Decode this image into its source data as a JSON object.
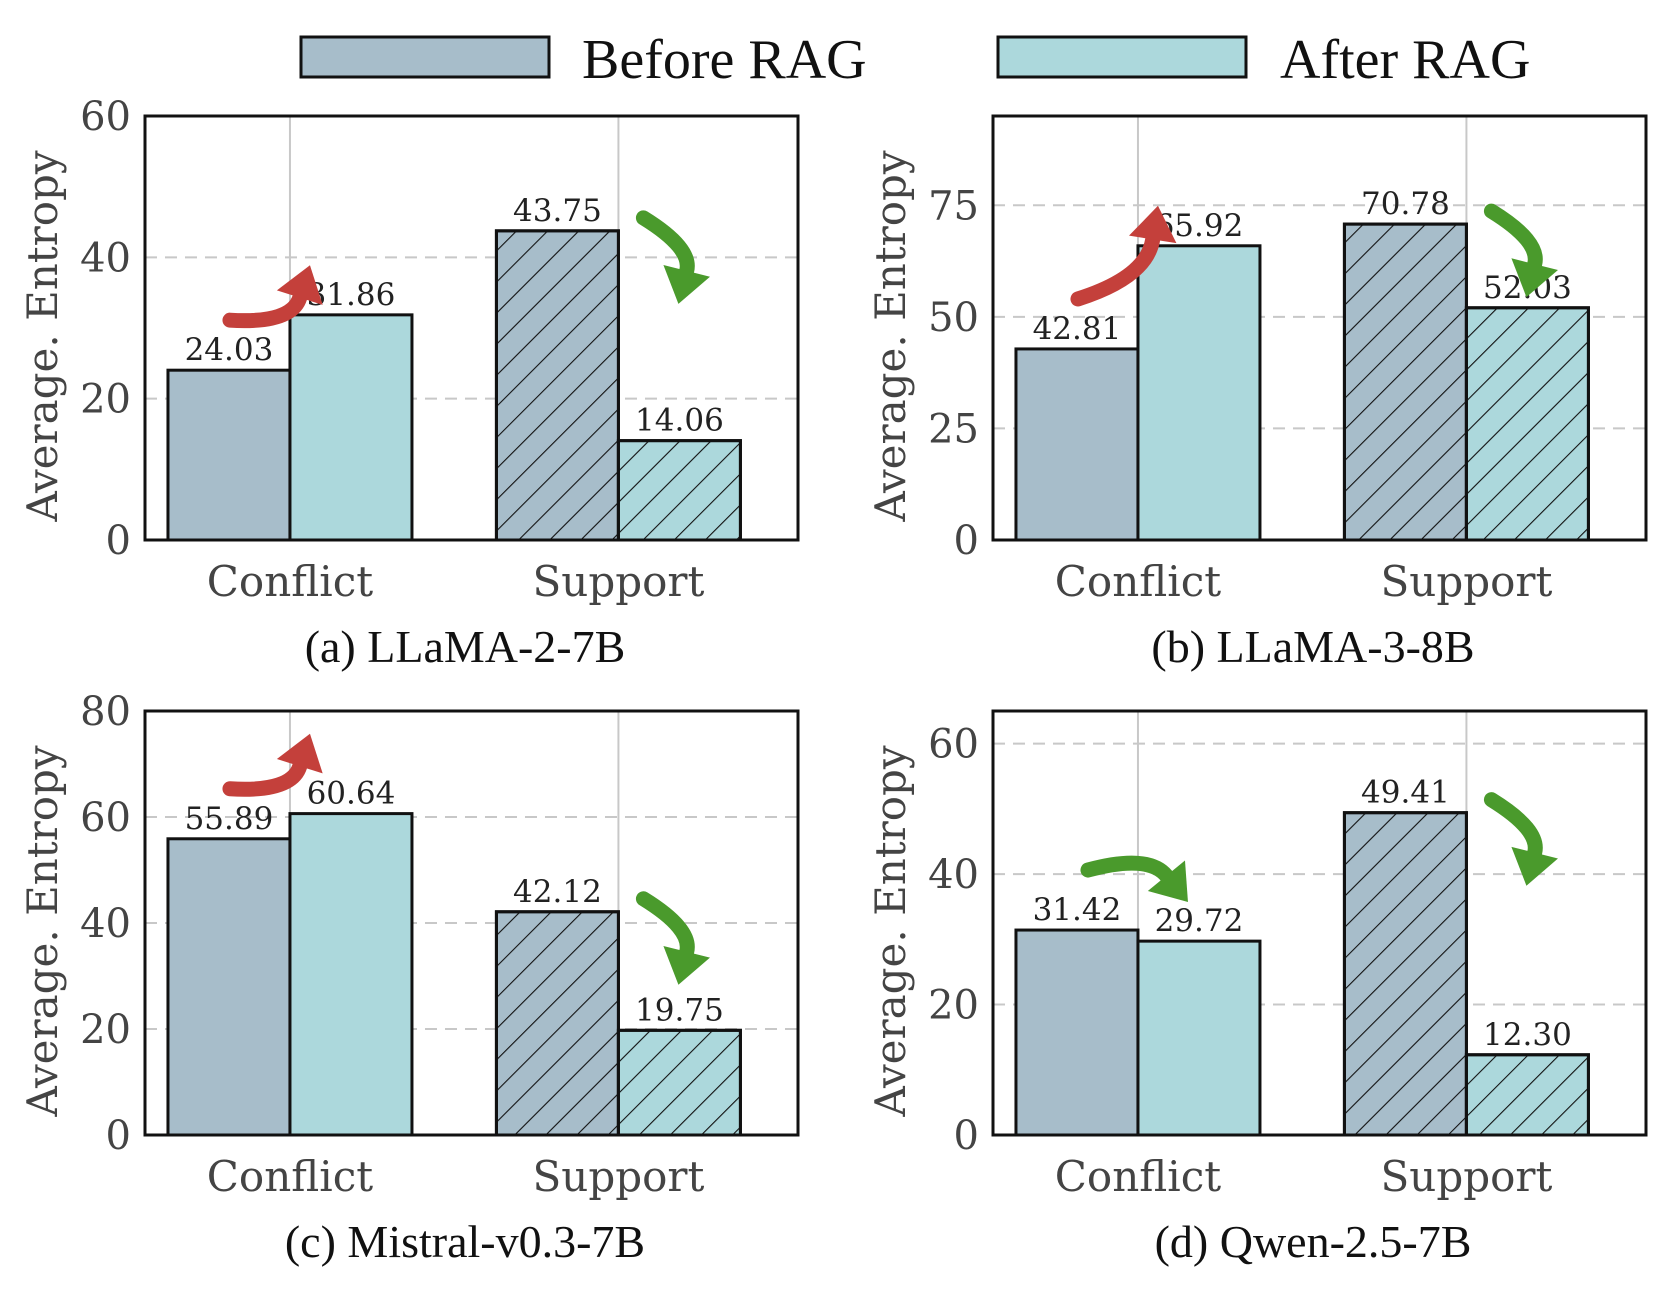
{
  "legend": {
    "before_label": "Before RAG",
    "after_label": "After RAG",
    "before_color": "#a7bdca",
    "after_color": "#acd8dc"
  },
  "colors": {
    "frame": "#111111",
    "grid": "#c8c8c8",
    "up_arrow": "#c4403b",
    "down_arrow": "#4a9a2c",
    "text": "#222222"
  },
  "chart_data": [
    {
      "type": "bar",
      "caption": "(a) LLaMA-2-7B",
      "ylabel": "Average.  Entropy",
      "categories": [
        "Conflict",
        "Support"
      ],
      "ylim": [
        0,
        60
      ],
      "yticks": [
        0,
        20,
        40,
        60
      ],
      "series": [
        {
          "name": "Before RAG",
          "values": [
            24.03,
            43.75
          ],
          "labels": [
            "24.03",
            "43.75"
          ]
        },
        {
          "name": "After RAG",
          "values": [
            31.86,
            14.06
          ],
          "labels": [
            "31.86",
            "14.06"
          ]
        }
      ],
      "arrows": [
        {
          "category": "Conflict",
          "direction": "up"
        },
        {
          "category": "Support",
          "direction": "down"
        }
      ]
    },
    {
      "type": "bar",
      "caption": "(b) LLaMA-3-8B",
      "ylabel": "Average.  Entropy",
      "categories": [
        "Conflict",
        "Support"
      ],
      "ylim": [
        0,
        95
      ],
      "yticks": [
        0,
        25,
        50,
        75
      ],
      "series": [
        {
          "name": "Before RAG",
          "values": [
            42.81,
            70.78
          ],
          "labels": [
            "42.81",
            "70.78"
          ]
        },
        {
          "name": "After RAG",
          "values": [
            65.92,
            52.03
          ],
          "labels": [
            "65.92",
            "52.03"
          ]
        }
      ],
      "arrows": [
        {
          "category": "Conflict",
          "direction": "up"
        },
        {
          "category": "Support",
          "direction": "down"
        }
      ]
    },
    {
      "type": "bar",
      "caption": "(c) Mistral-v0.3-7B",
      "ylabel": "Average.  Entropy",
      "categories": [
        "Conflict",
        "Support"
      ],
      "ylim": [
        0,
        80
      ],
      "yticks": [
        0,
        20,
        40,
        60,
        80
      ],
      "series": [
        {
          "name": "Before RAG",
          "values": [
            55.89,
            42.12
          ],
          "labels": [
            "55.89",
            "42.12"
          ]
        },
        {
          "name": "After RAG",
          "values": [
            60.64,
            19.75
          ],
          "labels": [
            "60.64",
            "19.75"
          ]
        }
      ],
      "arrows": [
        {
          "category": "Conflict",
          "direction": "up"
        },
        {
          "category": "Support",
          "direction": "down"
        }
      ]
    },
    {
      "type": "bar",
      "caption": "(d) Qwen-2.5-7B",
      "ylabel": "Average.  Entropy",
      "categories": [
        "Conflict",
        "Support"
      ],
      "ylim": [
        0,
        65
      ],
      "yticks": [
        0,
        20,
        40,
        60
      ],
      "series": [
        {
          "name": "Before RAG",
          "values": [
            31.42,
            49.41
          ],
          "labels": [
            "31.42",
            "49.41"
          ]
        },
        {
          "name": "After RAG",
          "values": [
            29.72,
            12.3
          ],
          "labels": [
            "29.72",
            "12.30"
          ]
        }
      ],
      "arrows": [
        {
          "category": "Conflict",
          "direction": "down"
        },
        {
          "category": "Support",
          "direction": "down"
        }
      ]
    }
  ]
}
